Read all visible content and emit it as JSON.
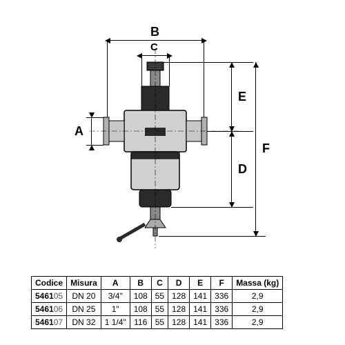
{
  "diagram": {
    "labels": {
      "A": "A",
      "B": "B",
      "C": "C",
      "D": "D",
      "E": "E",
      "F": "F"
    },
    "body_color": "#d0d0d0",
    "outline_color": "#000000",
    "dark_color": "#2a2a2a"
  },
  "table": {
    "columns": [
      "Codice",
      "Misura",
      "A",
      "B",
      "C",
      "D",
      "E",
      "F",
      "Massa (kg)"
    ],
    "rows": [
      {
        "code_bold": "5461",
        "code_light": "05",
        "misura": "DN 20",
        "A": "3/4\"",
        "B": "108",
        "C": "55",
        "D": "128",
        "E": "141",
        "F": "336",
        "M": "2,9"
      },
      {
        "code_bold": "5461",
        "code_light": "06",
        "misura": "DN 25",
        "A": "1\"",
        "B": "108",
        "C": "55",
        "D": "128",
        "E": "141",
        "F": "336",
        "M": "2,9"
      },
      {
        "code_bold": "5461",
        "code_light": "07",
        "misura": "DN 32",
        "A": "1 1/4\"",
        "B": "116",
        "C": "55",
        "D": "128",
        "E": "141",
        "F": "336",
        "M": "2,9"
      }
    ]
  }
}
